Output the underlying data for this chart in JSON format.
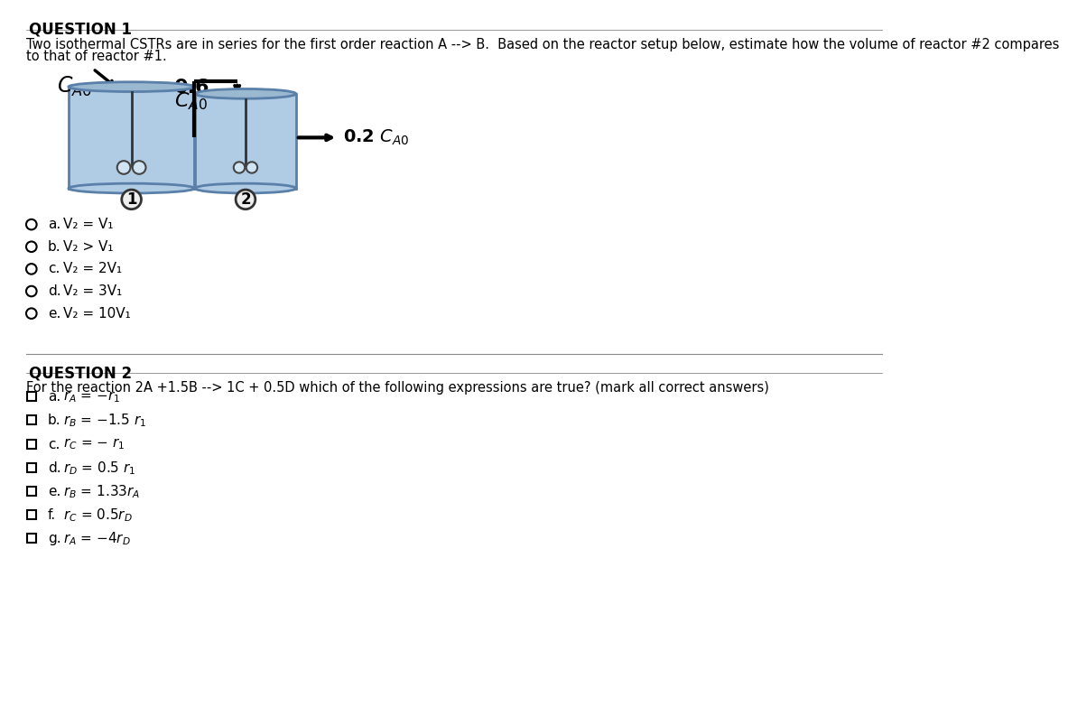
{
  "bg_color": "#ffffff",
  "q1_title": "QUESTION 1",
  "q1_text_line1": "Two isothermal CSTRs are in series for the first order reaction A --> B.  Based on the reactor setup below, estimate how the volume of reactor #2 compares",
  "q1_text_line2": "to that of reactor #1.",
  "q1_option_labels": [
    "a.",
    "b.",
    "c.",
    "d.",
    "e."
  ],
  "q1_options_text": [
    "V₂ = V₁",
    "V₂ > V₁",
    "V₂ = 2V₁",
    "V₂ = 3V₁",
    "V₂ = 10V₁"
  ],
  "q2_title": "QUESTION 2",
  "q2_text": "For the reaction 2A +1.5B --> 1C + 0.5D which of the following expressions are true? (mark all correct answers)",
  "q2_option_labels": [
    "a.",
    "b.",
    "c.",
    "d.",
    "e.",
    "f.",
    "g."
  ],
  "reactor_fill": "#b0cce4",
  "reactor_fill_light": "#c8ddf0",
  "reactor_edge": "#5a7fa8",
  "reactor_top_fill": "#9ab8d0",
  "impeller_fill": "#d0e4f4",
  "circle_num_fill": "#eeeeee"
}
